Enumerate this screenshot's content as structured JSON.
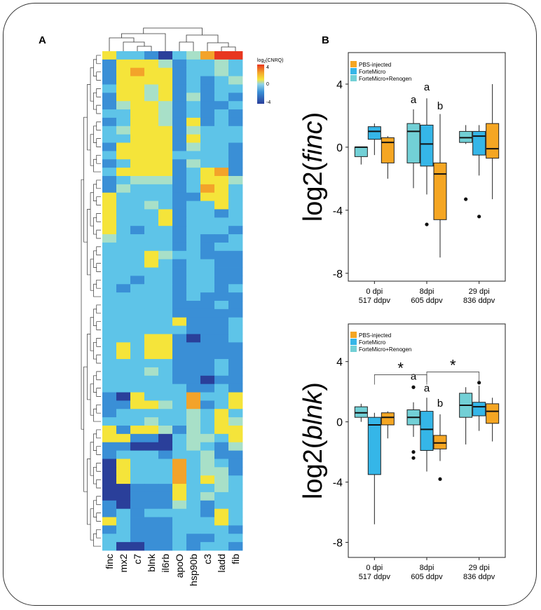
{
  "panel_labels": {
    "a": "A",
    "b": "B"
  },
  "legend_scale": {
    "title": "log2(CNRQ)",
    "title_prefix": "log",
    "title_sub": "2",
    "title_suffix": "(CNRQ)",
    "ticks": [
      "4",
      "0",
      "-4"
    ]
  },
  "chart_data": [
    {
      "type": "heatmap",
      "title": "",
      "columns": [
        "finc",
        "mx2",
        "c7",
        "blnk",
        "il6rb",
        "apoO",
        "hsp90b",
        "c3",
        "ladd",
        "fib"
      ],
      "n_rows": 60,
      "value_range": [
        -4,
        4
      ],
      "color_scale": [
        "#2a3f9a",
        "#3a8fd6",
        "#5ec4e8",
        "#f5e43a",
        "#f3a32a",
        "#e8361f"
      ],
      "matrix": [
        [
          2,
          0,
          0,
          -1,
          -2,
          0,
          1,
          3,
          4,
          4
        ],
        [
          -1,
          2,
          2,
          2,
          1,
          -1,
          0,
          0,
          1,
          0
        ],
        [
          -1,
          2,
          3,
          2,
          2,
          -1,
          0,
          0,
          1,
          0
        ],
        [
          -1,
          2,
          2,
          2,
          2,
          -1,
          0,
          -1,
          0,
          1
        ],
        [
          0,
          2,
          2,
          1,
          2,
          -1,
          0,
          -1,
          0,
          0
        ],
        [
          -1,
          2,
          2,
          1,
          2,
          -1,
          1,
          -1,
          0,
          -1
        ],
        [
          -1,
          1,
          2,
          2,
          1,
          -1,
          0,
          -1,
          -1,
          0
        ],
        [
          0,
          0,
          2,
          2,
          1,
          -1,
          0,
          -1,
          0,
          -1
        ],
        [
          -1,
          0,
          2,
          2,
          1,
          -1,
          2,
          -1,
          0,
          -1
        ],
        [
          0,
          1,
          2,
          2,
          2,
          -1,
          1,
          0,
          0,
          0
        ],
        [
          0,
          0,
          2,
          2,
          2,
          -1,
          2,
          0,
          0,
          0
        ],
        [
          -1,
          2,
          2,
          2,
          2,
          -1,
          1,
          0,
          0,
          -1
        ],
        [
          0,
          2,
          2,
          2,
          2,
          0,
          0,
          0,
          0,
          -1
        ],
        [
          -1,
          0,
          2,
          2,
          2,
          -1,
          1,
          0,
          0,
          -1
        ],
        [
          0,
          2,
          2,
          2,
          2,
          -1,
          0,
          2,
          3,
          -1
        ],
        [
          -1,
          0,
          1,
          1,
          1,
          -1,
          0,
          2,
          2,
          1
        ],
        [
          -1,
          1,
          0,
          0,
          0,
          -1,
          0,
          3,
          2,
          0
        ],
        [
          2,
          0,
          0,
          0,
          0,
          -1,
          -1,
          2,
          2,
          0
        ],
        [
          2,
          0,
          0,
          1,
          0,
          -1,
          0,
          0,
          2,
          0
        ],
        [
          2,
          0,
          0,
          0,
          2,
          -1,
          0,
          0,
          -1,
          0
        ],
        [
          2,
          0,
          0,
          0,
          2,
          -1,
          0,
          0,
          0,
          0
        ],
        [
          2,
          0,
          -1,
          0,
          0,
          -1,
          0,
          0,
          0,
          -1
        ],
        [
          1,
          0,
          0,
          0,
          0,
          -1,
          0,
          -1,
          -1,
          0
        ],
        [
          0,
          0,
          0,
          0,
          0,
          -1,
          0,
          -1,
          0,
          0
        ],
        [
          0,
          0,
          0,
          2,
          1,
          0,
          0,
          -1,
          -1,
          -1
        ],
        [
          0,
          0,
          0,
          2,
          0,
          -1,
          0,
          0,
          -1,
          -1
        ],
        [
          0,
          0,
          0,
          0,
          0,
          -1,
          0,
          0,
          -1,
          -1
        ],
        [
          0,
          0,
          -1,
          0,
          0,
          -1,
          0,
          0,
          -1,
          -1
        ],
        [
          0,
          -1,
          0,
          0,
          0,
          -1,
          0,
          0,
          -1,
          0
        ],
        [
          0,
          0,
          0,
          0,
          0,
          -1,
          0,
          -1,
          -1,
          -1
        ],
        [
          0,
          0,
          0,
          0,
          0,
          -1,
          -1,
          -1,
          0,
          -1
        ],
        [
          0,
          0,
          0,
          0,
          0,
          -1,
          -1,
          -1,
          -1,
          -1
        ],
        [
          0,
          0,
          0,
          0,
          0,
          2,
          -1,
          -1,
          -1,
          0
        ],
        [
          0,
          0,
          0,
          0,
          0,
          0,
          -1,
          -1,
          -1,
          0
        ],
        [
          0,
          0,
          0,
          2,
          2,
          -1,
          -2,
          -1,
          -1,
          0
        ],
        [
          0,
          2,
          0,
          2,
          2,
          -1,
          -1,
          -1,
          -1,
          -1
        ],
        [
          0,
          2,
          0,
          2,
          2,
          -1,
          -1,
          -1,
          -1,
          -1
        ],
        [
          0,
          0,
          0,
          0,
          0,
          -1,
          -1,
          -1,
          0,
          -1
        ],
        [
          0,
          0,
          0,
          1,
          0,
          -1,
          -1,
          -1,
          0,
          -1
        ],
        [
          0,
          0,
          0,
          0,
          0,
          -1,
          -1,
          -2,
          -1,
          -1
        ],
        [
          0,
          0,
          0,
          0,
          0,
          0,
          -1,
          -1,
          0,
          -1
        ],
        [
          -1,
          -2,
          2,
          0,
          0,
          0,
          3,
          0,
          0,
          2
        ],
        [
          -1,
          -1,
          2,
          2,
          1,
          0,
          3,
          -1,
          0,
          2
        ],
        [
          -1,
          0,
          0,
          0,
          0,
          0,
          1,
          0,
          2,
          0
        ],
        [
          0,
          0,
          0,
          1,
          0,
          0,
          1,
          0,
          2,
          1
        ],
        [
          2,
          -1,
          2,
          2,
          1,
          -1,
          1,
          0,
          2,
          2
        ],
        [
          2,
          2,
          -1,
          -1,
          -2,
          0,
          1,
          1,
          0,
          2
        ],
        [
          -1,
          -1,
          -2,
          -2,
          -2,
          0,
          1,
          0,
          -1,
          1
        ],
        [
          -1,
          0,
          0,
          0,
          -1,
          0,
          0,
          1,
          -1,
          -1
        ],
        [
          -2,
          2,
          0,
          0,
          0,
          3,
          0,
          1,
          0,
          -1
        ],
        [
          -2,
          2,
          0,
          0,
          0,
          3,
          0,
          1,
          1,
          -1
        ],
        [
          -2,
          2,
          0,
          0,
          0,
          3,
          0,
          2,
          1,
          0
        ],
        [
          -2,
          -2,
          -1,
          -1,
          -1,
          2,
          0,
          0,
          1,
          0
        ],
        [
          -2,
          -2,
          -1,
          -1,
          -1,
          2,
          0,
          1,
          0,
          0
        ],
        [
          -1,
          -2,
          -1,
          -1,
          -1,
          1,
          0,
          -1,
          0,
          0
        ],
        [
          -1,
          0,
          -1,
          0,
          0,
          0,
          0,
          -1,
          2,
          0
        ],
        [
          2,
          0,
          -1,
          -1,
          -1,
          0,
          0,
          0,
          2,
          0
        ],
        [
          -1,
          0,
          -1,
          -1,
          -1,
          0,
          0,
          0,
          0,
          -1
        ],
        [
          0,
          0,
          -1,
          -1,
          -1,
          0,
          -1,
          -1,
          0,
          0
        ],
        [
          0,
          -2,
          -2,
          -1,
          -1,
          0,
          -1,
          0,
          0,
          -1
        ]
      ]
    },
    {
      "type": "box",
      "title": "",
      "ylabel": "log2(finc)",
      "ylabel_prefix": "log2(",
      "ylabel_gene": "finc",
      "ylabel_suffix": ")",
      "ylim": [
        -8.5,
        6
      ],
      "yticks": [
        "4",
        "0",
        "-4",
        "-8"
      ],
      "ytick_values": [
        4,
        0,
        -4,
        -8
      ],
      "groups": [
        {
          "label_line1": "0 dpi",
          "label_line2": "517 ddpv"
        },
        {
          "label_line1": "8dpi",
          "label_line2": "605 ddpv"
        },
        {
          "label_line1": "29 dpi",
          "label_line2": "836 ddpv"
        }
      ],
      "legend": [
        "PBS-injected",
        "ForteMicro",
        "ForteMicro+Renogen"
      ],
      "series_colors": [
        "#f5a623",
        "#35b6e8",
        "#72d0d6"
      ],
      "boxes": [
        {
          "group": 0,
          "series": "ForteMicro+Renogen",
          "whisker_low": -1.1,
          "q1": -0.6,
          "median": 0,
          "q3": 0,
          "whisker_high": 0,
          "outliers": []
        },
        {
          "group": 0,
          "series": "ForteMicro",
          "whisker_low": -0.5,
          "q1": 0.5,
          "median": 1,
          "q3": 1.3,
          "whisker_high": 1.5,
          "outliers": []
        },
        {
          "group": 0,
          "series": "PBS-injected",
          "whisker_low": -2,
          "q1": -1,
          "median": 0.3,
          "q3": 0.6,
          "whisker_high": 0.7,
          "outliers": []
        },
        {
          "group": 1,
          "series": "ForteMicro+Renogen",
          "whisker_low": -2.6,
          "q1": -1,
          "median": 1,
          "q3": 1.5,
          "whisker_high": 2.4,
          "outliers": []
        },
        {
          "group": 1,
          "series": "ForteMicro",
          "whisker_low": -3,
          "q1": -1.2,
          "median": 0.2,
          "q3": 1.4,
          "whisker_high": 3.1,
          "outliers": [
            -4.9
          ]
        },
        {
          "group": 1,
          "series": "PBS-injected",
          "whisker_low": -7,
          "q1": -4.6,
          "median": -1.7,
          "q3": -1,
          "whisker_high": 2.1,
          "outliers": []
        },
        {
          "group": 2,
          "series": "ForteMicro+Renogen",
          "whisker_low": 0.2,
          "q1": 0.3,
          "median": 0.6,
          "q3": 1,
          "whisker_high": 1.4,
          "outliers": [
            -3.3
          ]
        },
        {
          "group": 2,
          "series": "ForteMicro",
          "whisker_low": -1.8,
          "q1": -0.5,
          "median": 0.7,
          "q3": 1,
          "whisker_high": 1.4,
          "outliers": [
            -4.4
          ]
        },
        {
          "group": 2,
          "series": "PBS-injected",
          "whisker_low": -3.3,
          "q1": -0.7,
          "median": -0.1,
          "q3": 1.5,
          "whisker_high": 4,
          "outliers": []
        }
      ],
      "annotations": [
        {
          "text": "a",
          "group": 1,
          "series": "ForteMicro+Renogen",
          "y": 2.8
        },
        {
          "text": "a",
          "group": 1,
          "series": "ForteMicro",
          "y": 3.6
        },
        {
          "text": "b",
          "group": 1,
          "series": "PBS-injected",
          "y": 2.4
        }
      ]
    },
    {
      "type": "box",
      "title": "",
      "ylabel": "log2(blnk)",
      "ylabel_prefix": "log2(",
      "ylabel_gene": "blnk",
      "ylabel_suffix": ")",
      "ylim": [
        -9,
        6.5
      ],
      "yticks": [
        "4",
        "0",
        "-4",
        "-8"
      ],
      "ytick_values": [
        4,
        0,
        -4,
        -8
      ],
      "groups": [
        {
          "label_line1": "0 dpi",
          "label_line2": "517 ddpv"
        },
        {
          "label_line1": "8dpi",
          "label_line2": "605 ddpv"
        },
        {
          "label_line1": "29 dpi",
          "label_line2": "836 ddpv"
        }
      ],
      "legend": [
        "PBS-injected",
        "ForteMicro",
        "ForteMicro+Renogen"
      ],
      "series_colors": [
        "#f5a623",
        "#35b6e8",
        "#72d0d6"
      ],
      "boxes": [
        {
          "group": 0,
          "series": "ForteMicro+Renogen",
          "whisker_low": 0,
          "q1": 0.3,
          "median": 0.6,
          "q3": 1,
          "whisker_high": 1.2,
          "outliers": []
        },
        {
          "group": 0,
          "series": "ForteMicro",
          "whisker_low": -6.8,
          "q1": -3.5,
          "median": -0.2,
          "q3": 0.3,
          "whisker_high": 0.6,
          "outliers": []
        },
        {
          "group": 0,
          "series": "PBS-injected",
          "whisker_low": -1.1,
          "q1": -0.2,
          "median": 0.3,
          "q3": 0.6,
          "whisker_high": 0.7,
          "outliers": []
        },
        {
          "group": 1,
          "series": "ForteMicro+Renogen",
          "whisker_low": -1,
          "q1": -0.2,
          "median": 0.3,
          "q3": 0.8,
          "whisker_high": 1.3,
          "outliers": [
            -2,
            -2.4,
            2.3
          ]
        },
        {
          "group": 1,
          "series": "ForteMicro",
          "whisker_low": -3.3,
          "q1": -1.9,
          "median": -0.5,
          "q3": 0.7,
          "whisker_high": 1.6,
          "outliers": []
        },
        {
          "group": 1,
          "series": "PBS-injected",
          "whisker_low": -2.6,
          "q1": -1.8,
          "median": -1.4,
          "q3": -0.9,
          "whisker_high": 0.5,
          "outliers": [
            -3.8
          ]
        },
        {
          "group": 2,
          "series": "ForteMicro+Renogen",
          "whisker_low": -1.5,
          "q1": 0.3,
          "median": 1.1,
          "q3": 1.9,
          "whisker_high": 2.3,
          "outliers": []
        },
        {
          "group": 2,
          "series": "ForteMicro",
          "whisker_low": -0.6,
          "q1": 0.4,
          "median": 1,
          "q3": 1.3,
          "whisker_high": 2.4,
          "outliers": [
            2.6
          ]
        },
        {
          "group": 2,
          "series": "PBS-injected",
          "whisker_low": -1.3,
          "q1": -0.1,
          "median": 0.7,
          "q3": 1.2,
          "whisker_high": 1.6,
          "outliers": []
        }
      ],
      "annotations": [
        {
          "text": "a",
          "group": 1,
          "series": "ForteMicro+Renogen",
          "y": 2.8
        },
        {
          "text": "a",
          "group": 1,
          "series": "ForteMicro",
          "y": 2.0
        },
        {
          "text": "b",
          "group": 1,
          "series": "PBS-injected",
          "y": 1.0
        }
      ],
      "significance": [
        {
          "text": "*",
          "from_group": 0,
          "to_group": 1,
          "y": 3.5
        },
        {
          "text": "*",
          "from_group": 1,
          "to_group": 2,
          "y": 3.5
        }
      ]
    }
  ]
}
